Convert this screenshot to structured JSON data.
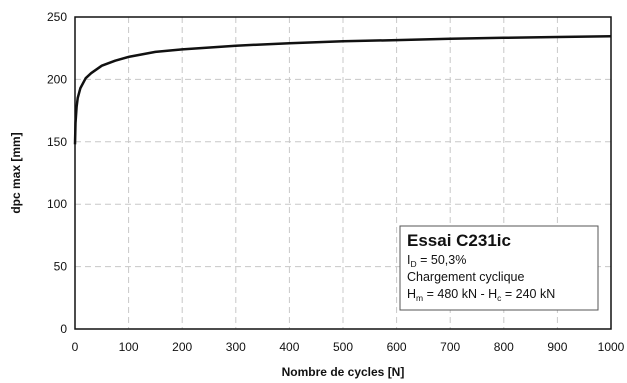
{
  "chart_data": {
    "type": "line",
    "xlabel": "Nombre de cycles [N]",
    "ylabel": "dpc max [mm]",
    "xlim": [
      0,
      1000
    ],
    "ylim": [
      0,
      250
    ],
    "xticks": [
      0,
      100,
      200,
      300,
      400,
      500,
      600,
      700,
      800,
      900,
      1000
    ],
    "yticks": [
      0,
      50,
      100,
      150,
      200,
      250
    ],
    "grid": true,
    "line_color": "#111111",
    "series": [
      {
        "x": [
          0,
          1,
          3,
          5,
          10,
          20,
          30,
          50,
          75,
          100,
          150,
          200,
          300,
          400,
          500,
          600,
          700,
          800,
          900,
          1000
        ],
        "y": [
          148,
          165,
          178,
          185,
          193,
          201,
          205,
          211,
          215,
          218,
          222,
          224,
          227,
          229,
          230.5,
          231.5,
          232.5,
          233.3,
          234,
          234.5
        ]
      }
    ],
    "annotation": {
      "title": "Essai C231ic",
      "line1": {
        "prefix": "I",
        "sub": "D",
        "suffix": " = 50,3%"
      },
      "line2": "Chargement cyclique",
      "line3": {
        "a": "H",
        "a_sub": "m",
        "a_val": " = 480 kN - H",
        "b_sub": "c",
        "b_val": " = 240 kN"
      }
    }
  }
}
